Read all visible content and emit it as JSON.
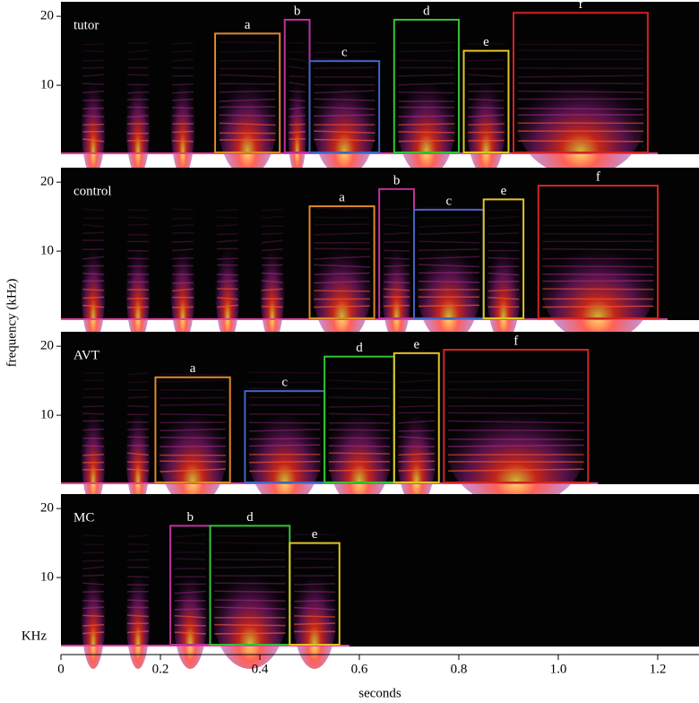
{
  "panels": [
    {
      "name": "tutor",
      "boxes": [
        {
          "label": "a",
          "start": 0.31,
          "end": 0.44,
          "top": 17.5,
          "color": "#e0872c"
        },
        {
          "label": "b",
          "start": 0.45,
          "end": 0.5,
          "top": 19.5,
          "color": "#c0309c"
        },
        {
          "label": "c",
          "start": 0.5,
          "end": 0.64,
          "top": 13.5,
          "color": "#4563c4"
        },
        {
          "label": "d",
          "start": 0.67,
          "end": 0.8,
          "top": 19.5,
          "color": "#35c235"
        },
        {
          "label": "e",
          "start": 0.81,
          "end": 0.9,
          "top": 15,
          "color": "#e2c325"
        },
        {
          "label": "f",
          "start": 0.91,
          "end": 1.18,
          "top": 20.5,
          "color": "#d42222"
        }
      ]
    },
    {
      "name": "control",
      "boxes": [
        {
          "label": "a",
          "start": 0.5,
          "end": 0.63,
          "top": 16.5,
          "color": "#e0872c"
        },
        {
          "label": "b",
          "start": 0.64,
          "end": 0.71,
          "top": 19,
          "color": "#c0309c"
        },
        {
          "label": "c",
          "start": 0.71,
          "end": 0.85,
          "top": 16,
          "color": "#4563c4"
        },
        {
          "label": "e",
          "start": 0.85,
          "end": 0.93,
          "top": 17.5,
          "color": "#e2c325"
        },
        {
          "label": "f",
          "start": 0.96,
          "end": 1.2,
          "top": 19.5,
          "color": "#d42222"
        }
      ]
    },
    {
      "name": "AVT",
      "boxes": [
        {
          "label": "a",
          "start": 0.19,
          "end": 0.34,
          "top": 15.5,
          "color": "#e0872c"
        },
        {
          "label": "c",
          "start": 0.37,
          "end": 0.53,
          "top": 13.5,
          "color": "#4563c4"
        },
        {
          "label": "d",
          "start": 0.53,
          "end": 0.67,
          "top": 18.5,
          "color": "#35c235"
        },
        {
          "label": "e",
          "start": 0.67,
          "end": 0.76,
          "top": 19,
          "color": "#e2c325"
        },
        {
          "label": "f",
          "start": 0.77,
          "end": 1.06,
          "top": 19.5,
          "color": "#d42222"
        }
      ]
    },
    {
      "name": "MC",
      "boxes": [
        {
          "label": "b",
          "start": 0.22,
          "end": 0.3,
          "top": 17.5,
          "color": "#c0309c"
        },
        {
          "label": "d",
          "start": 0.3,
          "end": 0.46,
          "top": 17.5,
          "color": "#35c235"
        },
        {
          "label": "e",
          "start": 0.46,
          "end": 0.56,
          "top": 15,
          "color": "#e2c325"
        }
      ]
    }
  ],
  "y_axis": {
    "label": "frequency (kHz)",
    "lim": [
      0,
      22.1
    ],
    "ticks": [
      20,
      10
    ]
  },
  "unit_label": "KHz",
  "x_axis": {
    "label": "seconds",
    "lim": [
      0,
      1.283
    ],
    "ticks": [
      0,
      0.2,
      0.4,
      0.6,
      0.8,
      {
        "value": 1,
        "label": "1.0"
      },
      1.2
    ]
  }
}
